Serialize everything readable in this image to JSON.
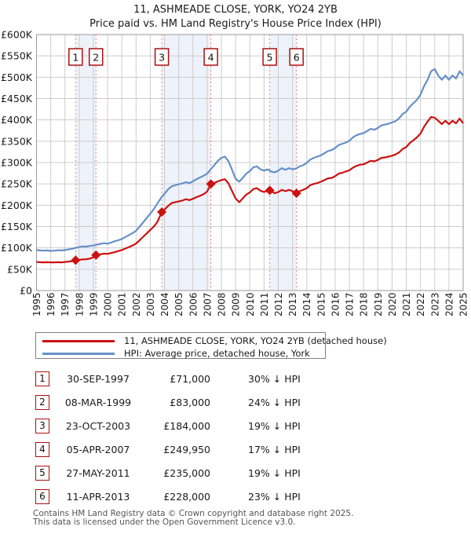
{
  "chart_data": {
    "type": "line",
    "title": "11, ASHMEADE CLOSE, YORK, YO24 2YB",
    "subtitle": "Price paid vs. HM Land Registry's House Price Index (HPI)",
    "units": "GBP thousands",
    "ylim": [
      0,
      600
    ],
    "yticks": [
      "£0",
      "£50K",
      "£100K",
      "£150K",
      "£200K",
      "£250K",
      "£300K",
      "£350K",
      "£400K",
      "£450K",
      "£500K",
      "£550K",
      "£600K"
    ],
    "years": [
      1995,
      1996,
      1997,
      1998,
      1999,
      2000,
      2001,
      2002,
      2003,
      2004,
      2005,
      2006,
      2007,
      2008,
      2009,
      2010,
      2011,
      2012,
      2013,
      2014,
      2015,
      2016,
      2017,
      2018,
      2019,
      2020,
      2021,
      2022,
      2023,
      2024,
      2025
    ],
    "grid": true,
    "legend_position": "below",
    "colors": {
      "price_paid": "#cc1111",
      "hpi": "#6690c8",
      "band_fill": "#eef2fa",
      "sale_dash": "#f37f7f",
      "gridline": "#cccccc",
      "plot_border": "#9a9a9a"
    },
    "shaded_bands": [
      [
        1997.75,
        1999.18
      ],
      [
        2003.81,
        2007.26
      ],
      [
        2011.4,
        2013.28
      ]
    ],
    "sales_markers": [
      {
        "num": "1",
        "x": 1997.75,
        "price_k": 71
      },
      {
        "num": "2",
        "x": 1999.18,
        "price_k": 83
      },
      {
        "num": "3",
        "x": 2003.81,
        "price_k": 184
      },
      {
        "num": "4",
        "x": 2007.26,
        "price_k": 249.95
      },
      {
        "num": "5",
        "x": 2011.4,
        "price_k": 235
      },
      {
        "num": "6",
        "x": 2013.28,
        "price_k": 228
      }
    ],
    "series": [
      {
        "name": "11, ASHMEADE CLOSE, YORK, YO24 2YB (detached house)",
        "color": "#cc1111",
        "points": [
          [
            1995,
            67
          ],
          [
            1995.25,
            66.5
          ],
          [
            1995.5,
            66
          ],
          [
            1995.75,
            66.5
          ],
          [
            1996,
            66
          ],
          [
            1996.25,
            66
          ],
          [
            1996.5,
            66.5
          ],
          [
            1996.75,
            66
          ],
          [
            1997,
            67
          ],
          [
            1997.25,
            68
          ],
          [
            1997.5,
            69
          ],
          [
            1997.75,
            71
          ],
          [
            1998,
            72
          ],
          [
            1998.25,
            73
          ],
          [
            1998.5,
            73.5
          ],
          [
            1998.75,
            75
          ],
          [
            1999,
            78
          ],
          [
            1999.18,
            83
          ],
          [
            1999.5,
            85
          ],
          [
            1999.75,
            86.5
          ],
          [
            2000,
            86
          ],
          [
            2000.25,
            88
          ],
          [
            2000.5,
            90
          ],
          [
            2000.75,
            92.5
          ],
          [
            2001,
            95
          ],
          [
            2001.25,
            98.5
          ],
          [
            2001.5,
            102
          ],
          [
            2001.75,
            105.5
          ],
          [
            2002,
            110
          ],
          [
            2002.25,
            118
          ],
          [
            2002.5,
            126
          ],
          [
            2002.75,
            134
          ],
          [
            2003,
            142
          ],
          [
            2003.25,
            150
          ],
          [
            2003.5,
            161
          ],
          [
            2003.81,
            184
          ],
          [
            2004,
            190
          ],
          [
            2004.25,
            198
          ],
          [
            2004.5,
            205
          ],
          [
            2004.75,
            207
          ],
          [
            2005,
            209
          ],
          [
            2005.25,
            211
          ],
          [
            2005.5,
            214
          ],
          [
            2005.75,
            212
          ],
          [
            2006,
            215
          ],
          [
            2006.25,
            219
          ],
          [
            2006.5,
            222
          ],
          [
            2006.75,
            226
          ],
          [
            2007,
            232
          ],
          [
            2007.26,
            249.95
          ],
          [
            2007.5,
            252
          ],
          [
            2007.75,
            256
          ],
          [
            2008,
            259
          ],
          [
            2008.25,
            261
          ],
          [
            2008.5,
            251
          ],
          [
            2008.75,
            233
          ],
          [
            2009,
            216
          ],
          [
            2009.25,
            207
          ],
          [
            2009.5,
            216
          ],
          [
            2009.75,
            225
          ],
          [
            2010,
            230
          ],
          [
            2010.25,
            238
          ],
          [
            2010.5,
            240
          ],
          [
            2010.75,
            234
          ],
          [
            2011,
            231
          ],
          [
            2011.25,
            234
          ],
          [
            2011.4,
            235
          ],
          [
            2011.75,
            228
          ],
          [
            2012,
            231
          ],
          [
            2012.25,
            236
          ],
          [
            2012.5,
            233
          ],
          [
            2012.75,
            236
          ],
          [
            2013,
            233
          ],
          [
            2013.28,
            228
          ],
          [
            2013.5,
            233
          ],
          [
            2013.75,
            236
          ],
          [
            2014,
            240
          ],
          [
            2014.25,
            247
          ],
          [
            2014.5,
            250
          ],
          [
            2014.75,
            252
          ],
          [
            2015,
            255
          ],
          [
            2015.25,
            259
          ],
          [
            2015.5,
            263
          ],
          [
            2015.75,
            264
          ],
          [
            2016,
            268
          ],
          [
            2016.25,
            274
          ],
          [
            2016.5,
            276
          ],
          [
            2016.75,
            279
          ],
          [
            2017,
            282
          ],
          [
            2017.25,
            288
          ],
          [
            2017.5,
            292
          ],
          [
            2017.75,
            295
          ],
          [
            2018,
            296
          ],
          [
            2018.25,
            300
          ],
          [
            2018.5,
            304
          ],
          [
            2018.75,
            303
          ],
          [
            2019,
            306
          ],
          [
            2019.25,
            311
          ],
          [
            2019.5,
            312
          ],
          [
            2019.75,
            314
          ],
          [
            2020,
            316
          ],
          [
            2020.25,
            319
          ],
          [
            2020.5,
            324
          ],
          [
            2020.75,
            332
          ],
          [
            2021,
            336
          ],
          [
            2021.25,
            346
          ],
          [
            2021.5,
            352
          ],
          [
            2021.75,
            359
          ],
          [
            2022,
            368
          ],
          [
            2022.25,
            384
          ],
          [
            2022.5,
            396
          ],
          [
            2022.75,
            407
          ],
          [
            2023,
            405
          ],
          [
            2023.25,
            398
          ],
          [
            2023.5,
            390
          ],
          [
            2023.75,
            398
          ],
          [
            2024,
            390
          ],
          [
            2024.25,
            398
          ],
          [
            2024.5,
            392
          ],
          [
            2024.75,
            403
          ],
          [
            2025,
            392
          ]
        ]
      },
      {
        "name": "HPI: Average price, detached house, York",
        "color": "#6690c8",
        "points": [
          [
            1995,
            95
          ],
          [
            1995.25,
            94
          ],
          [
            1995.5,
            93.5
          ],
          [
            1995.75,
            94
          ],
          [
            1996,
            93
          ],
          [
            1996.25,
            93.5
          ],
          [
            1996.5,
            94.5
          ],
          [
            1996.75,
            94
          ],
          [
            1997,
            95
          ],
          [
            1997.25,
            96.5
          ],
          [
            1997.5,
            98
          ],
          [
            1997.75,
            100
          ],
          [
            1998,
            102
          ],
          [
            1998.25,
            103.5
          ],
          [
            1998.5,
            103
          ],
          [
            1998.75,
            104.5
          ],
          [
            1999,
            105.5
          ],
          [
            1999.25,
            107.5
          ],
          [
            1999.5,
            109.5
          ],
          [
            1999.75,
            111
          ],
          [
            2000,
            110
          ],
          [
            2000.25,
            112.5
          ],
          [
            2000.5,
            115.5
          ],
          [
            2000.75,
            118
          ],
          [
            2001,
            121
          ],
          [
            2001.25,
            125.5
          ],
          [
            2001.5,
            130
          ],
          [
            2001.75,
            134.5
          ],
          [
            2002,
            140
          ],
          [
            2002.25,
            150
          ],
          [
            2002.5,
            160
          ],
          [
            2002.75,
            170
          ],
          [
            2003,
            180
          ],
          [
            2003.25,
            191
          ],
          [
            2003.5,
            204
          ],
          [
            2003.75,
            217
          ],
          [
            2004,
            227
          ],
          [
            2004.25,
            237
          ],
          [
            2004.5,
            244
          ],
          [
            2004.75,
            247
          ],
          [
            2005,
            249
          ],
          [
            2005.25,
            251
          ],
          [
            2005.5,
            254
          ],
          [
            2005.75,
            252
          ],
          [
            2006,
            256
          ],
          [
            2006.25,
            261
          ],
          [
            2006.5,
            265
          ],
          [
            2006.75,
            269
          ],
          [
            2007,
            274
          ],
          [
            2007.25,
            284
          ],
          [
            2007.5,
            294
          ],
          [
            2007.75,
            304
          ],
          [
            2008,
            311
          ],
          [
            2008.25,
            314
          ],
          [
            2008.5,
            303
          ],
          [
            2008.75,
            283
          ],
          [
            2009,
            262
          ],
          [
            2009.25,
            255
          ],
          [
            2009.5,
            264
          ],
          [
            2009.75,
            274
          ],
          [
            2010,
            280
          ],
          [
            2010.25,
            289
          ],
          [
            2010.5,
            291
          ],
          [
            2010.75,
            284
          ],
          [
            2011,
            281
          ],
          [
            2011.25,
            284
          ],
          [
            2011.5,
            279
          ],
          [
            2011.75,
            277
          ],
          [
            2012,
            281
          ],
          [
            2012.25,
            287
          ],
          [
            2012.5,
            283
          ],
          [
            2012.75,
            287
          ],
          [
            2013,
            284
          ],
          [
            2013.25,
            286
          ],
          [
            2013.5,
            291
          ],
          [
            2013.75,
            294
          ],
          [
            2014,
            299
          ],
          [
            2014.25,
            307
          ],
          [
            2014.5,
            311
          ],
          [
            2014.75,
            314
          ],
          [
            2015,
            317
          ],
          [
            2015.25,
            322
          ],
          [
            2015.5,
            327
          ],
          [
            2015.75,
            329
          ],
          [
            2016,
            334
          ],
          [
            2016.25,
            341
          ],
          [
            2016.5,
            344
          ],
          [
            2016.75,
            347
          ],
          [
            2017,
            351
          ],
          [
            2017.25,
            359
          ],
          [
            2017.5,
            364
          ],
          [
            2017.75,
            367
          ],
          [
            2018,
            369
          ],
          [
            2018.25,
            374
          ],
          [
            2018.5,
            379
          ],
          [
            2018.75,
            377
          ],
          [
            2019,
            381
          ],
          [
            2019.25,
            387
          ],
          [
            2019.5,
            389
          ],
          [
            2019.75,
            391
          ],
          [
            2020,
            394
          ],
          [
            2020.25,
            397
          ],
          [
            2020.5,
            404
          ],
          [
            2020.75,
            414
          ],
          [
            2021,
            419
          ],
          [
            2021.25,
            431
          ],
          [
            2021.5,
            439
          ],
          [
            2021.75,
            447
          ],
          [
            2022,
            459
          ],
          [
            2022.25,
            479
          ],
          [
            2022.5,
            494
          ],
          [
            2022.75,
            514
          ],
          [
            2023,
            519
          ],
          [
            2023.25,
            504
          ],
          [
            2023.5,
            494
          ],
          [
            2023.75,
            504
          ],
          [
            2024,
            494
          ],
          [
            2024.25,
            504
          ],
          [
            2024.5,
            497
          ],
          [
            2024.75,
            514
          ],
          [
            2025,
            504
          ]
        ]
      }
    ]
  },
  "legend": {
    "items": [
      {
        "label": "11, ASHMEADE CLOSE, YORK, YO24 2YB (detached house)",
        "color": "#cc1111"
      },
      {
        "label": "HPI: Average price, detached house, York",
        "color": "#6690c8"
      }
    ]
  },
  "table": {
    "rows": [
      {
        "num": "1",
        "date": "30-SEP-1997",
        "price": "£71,000",
        "hpi": "30% ↓ HPI"
      },
      {
        "num": "2",
        "date": "08-MAR-1999",
        "price": "£83,000",
        "hpi": "24% ↓ HPI"
      },
      {
        "num": "3",
        "date": "23-OCT-2003",
        "price": "£184,000",
        "hpi": "19% ↓ HPI"
      },
      {
        "num": "4",
        "date": "05-APR-2007",
        "price": "£249,950",
        "hpi": "17% ↓ HPI"
      },
      {
        "num": "5",
        "date": "27-MAY-2011",
        "price": "£235,000",
        "hpi": "19% ↓ HPI"
      },
      {
        "num": "6",
        "date": "11-APR-2013",
        "price": "£228,000",
        "hpi": "23% ↓ HPI"
      }
    ]
  },
  "footer": {
    "line1": "Contains HM Land Registry data © Crown copyright and database right 2025.",
    "line2": "This data is licensed under the Open Government Licence v3.0."
  }
}
